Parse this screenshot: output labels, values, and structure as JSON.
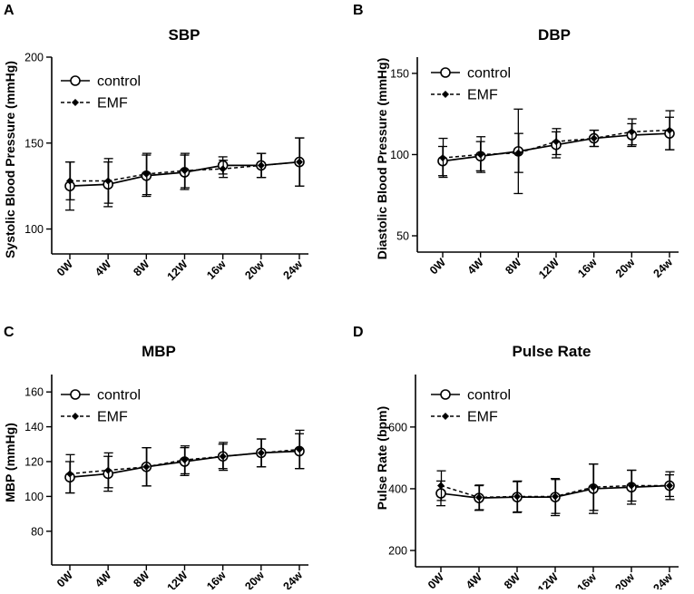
{
  "chart_data": [
    {
      "type": "line",
      "panel": "A",
      "title": "SBP",
      "xlabel": "",
      "ylabel": "Systolic Blood Pressure (mmHg)",
      "categories": [
        "0W",
        "4W",
        "8W",
        "12W",
        "16w",
        "20w",
        "24w"
      ],
      "ylim": [
        95,
        200
      ],
      "yticks": [
        100,
        150,
        200
      ],
      "legend": "top-left",
      "series": [
        {
          "name": "control",
          "style": "solid-open-circle",
          "values": [
            125,
            126,
            131,
            133,
            137,
            137,
            139
          ],
          "err": [
            14,
            13,
            12,
            10,
            5,
            7,
            14
          ]
        },
        {
          "name": "EMF",
          "style": "dashed-filled-diamond",
          "values": [
            128,
            128,
            132,
            134,
            135,
            137,
            139
          ],
          "err": [
            11,
            13,
            12,
            10,
            5,
            7,
            14
          ]
        }
      ]
    },
    {
      "type": "line",
      "panel": "B",
      "title": "DBP",
      "xlabel": "",
      "ylabel": "Diastolic Blood Pressure (mmHg)",
      "categories": [
        "0W",
        "4W",
        "8W",
        "12W",
        "16w",
        "20w",
        "24w"
      ],
      "ylim": [
        50,
        160
      ],
      "yticks": [
        50,
        100,
        150
      ],
      "legend": "top-left",
      "series": [
        {
          "name": "control",
          "style": "solid-open-circle",
          "values": [
            96,
            99,
            102,
            106,
            110,
            112,
            113
          ],
          "err": [
            9,
            9,
            26,
            8,
            5,
            7,
            10
          ]
        },
        {
          "name": "EMF",
          "style": "dashed-filled-diamond",
          "values": [
            98,
            100,
            101,
            108,
            110,
            114,
            115
          ],
          "err": [
            12,
            11,
            12,
            8,
            5,
            8,
            12
          ]
        }
      ]
    },
    {
      "type": "line",
      "panel": "C",
      "title": "MBP",
      "xlabel": "",
      "ylabel": "MBP (mmHg)",
      "categories": [
        "0W",
        "4W",
        "8W",
        "12W",
        "16w",
        "20w",
        "24w"
      ],
      "ylim": [
        70,
        170
      ],
      "yticks": [
        80,
        100,
        120,
        140,
        160
      ],
      "legend": "top-left",
      "series": [
        {
          "name": "control",
          "style": "solid-open-circle",
          "values": [
            111,
            113,
            117,
            120,
            123,
            125,
            126
          ],
          "err": [
            9,
            10,
            11,
            8,
            7,
            8,
            10
          ]
        },
        {
          "name": "EMF",
          "style": "dashed-filled-diamond",
          "values": [
            113,
            115,
            117,
            121,
            123,
            125,
            127
          ],
          "err": [
            11,
            10,
            11,
            8,
            8,
            8,
            11
          ]
        }
      ]
    },
    {
      "type": "line",
      "panel": "D",
      "title": "Pulse Rate",
      "xlabel": "",
      "ylabel": "Pulse Rate (bpm)",
      "categories": [
        "0W",
        "4W",
        "8W",
        "12W",
        "16w",
        "20w",
        "24w"
      ],
      "ylim": [
        200,
        770
      ],
      "yticks": [
        200,
        400,
        600
      ],
      "legend": "top-left",
      "series": [
        {
          "name": "control",
          "style": "solid-open-circle",
          "values": [
            385,
            370,
            373,
            373,
            400,
            405,
            410
          ],
          "err": [
            40,
            40,
            50,
            60,
            80,
            55,
            35
          ]
        },
        {
          "name": "EMF",
          "style": "dashed-filled-diamond",
          "values": [
            410,
            372,
            375,
            375,
            405,
            410,
            410
          ],
          "err": [
            48,
            40,
            50,
            55,
            75,
            50,
            45
          ]
        }
      ]
    }
  ]
}
